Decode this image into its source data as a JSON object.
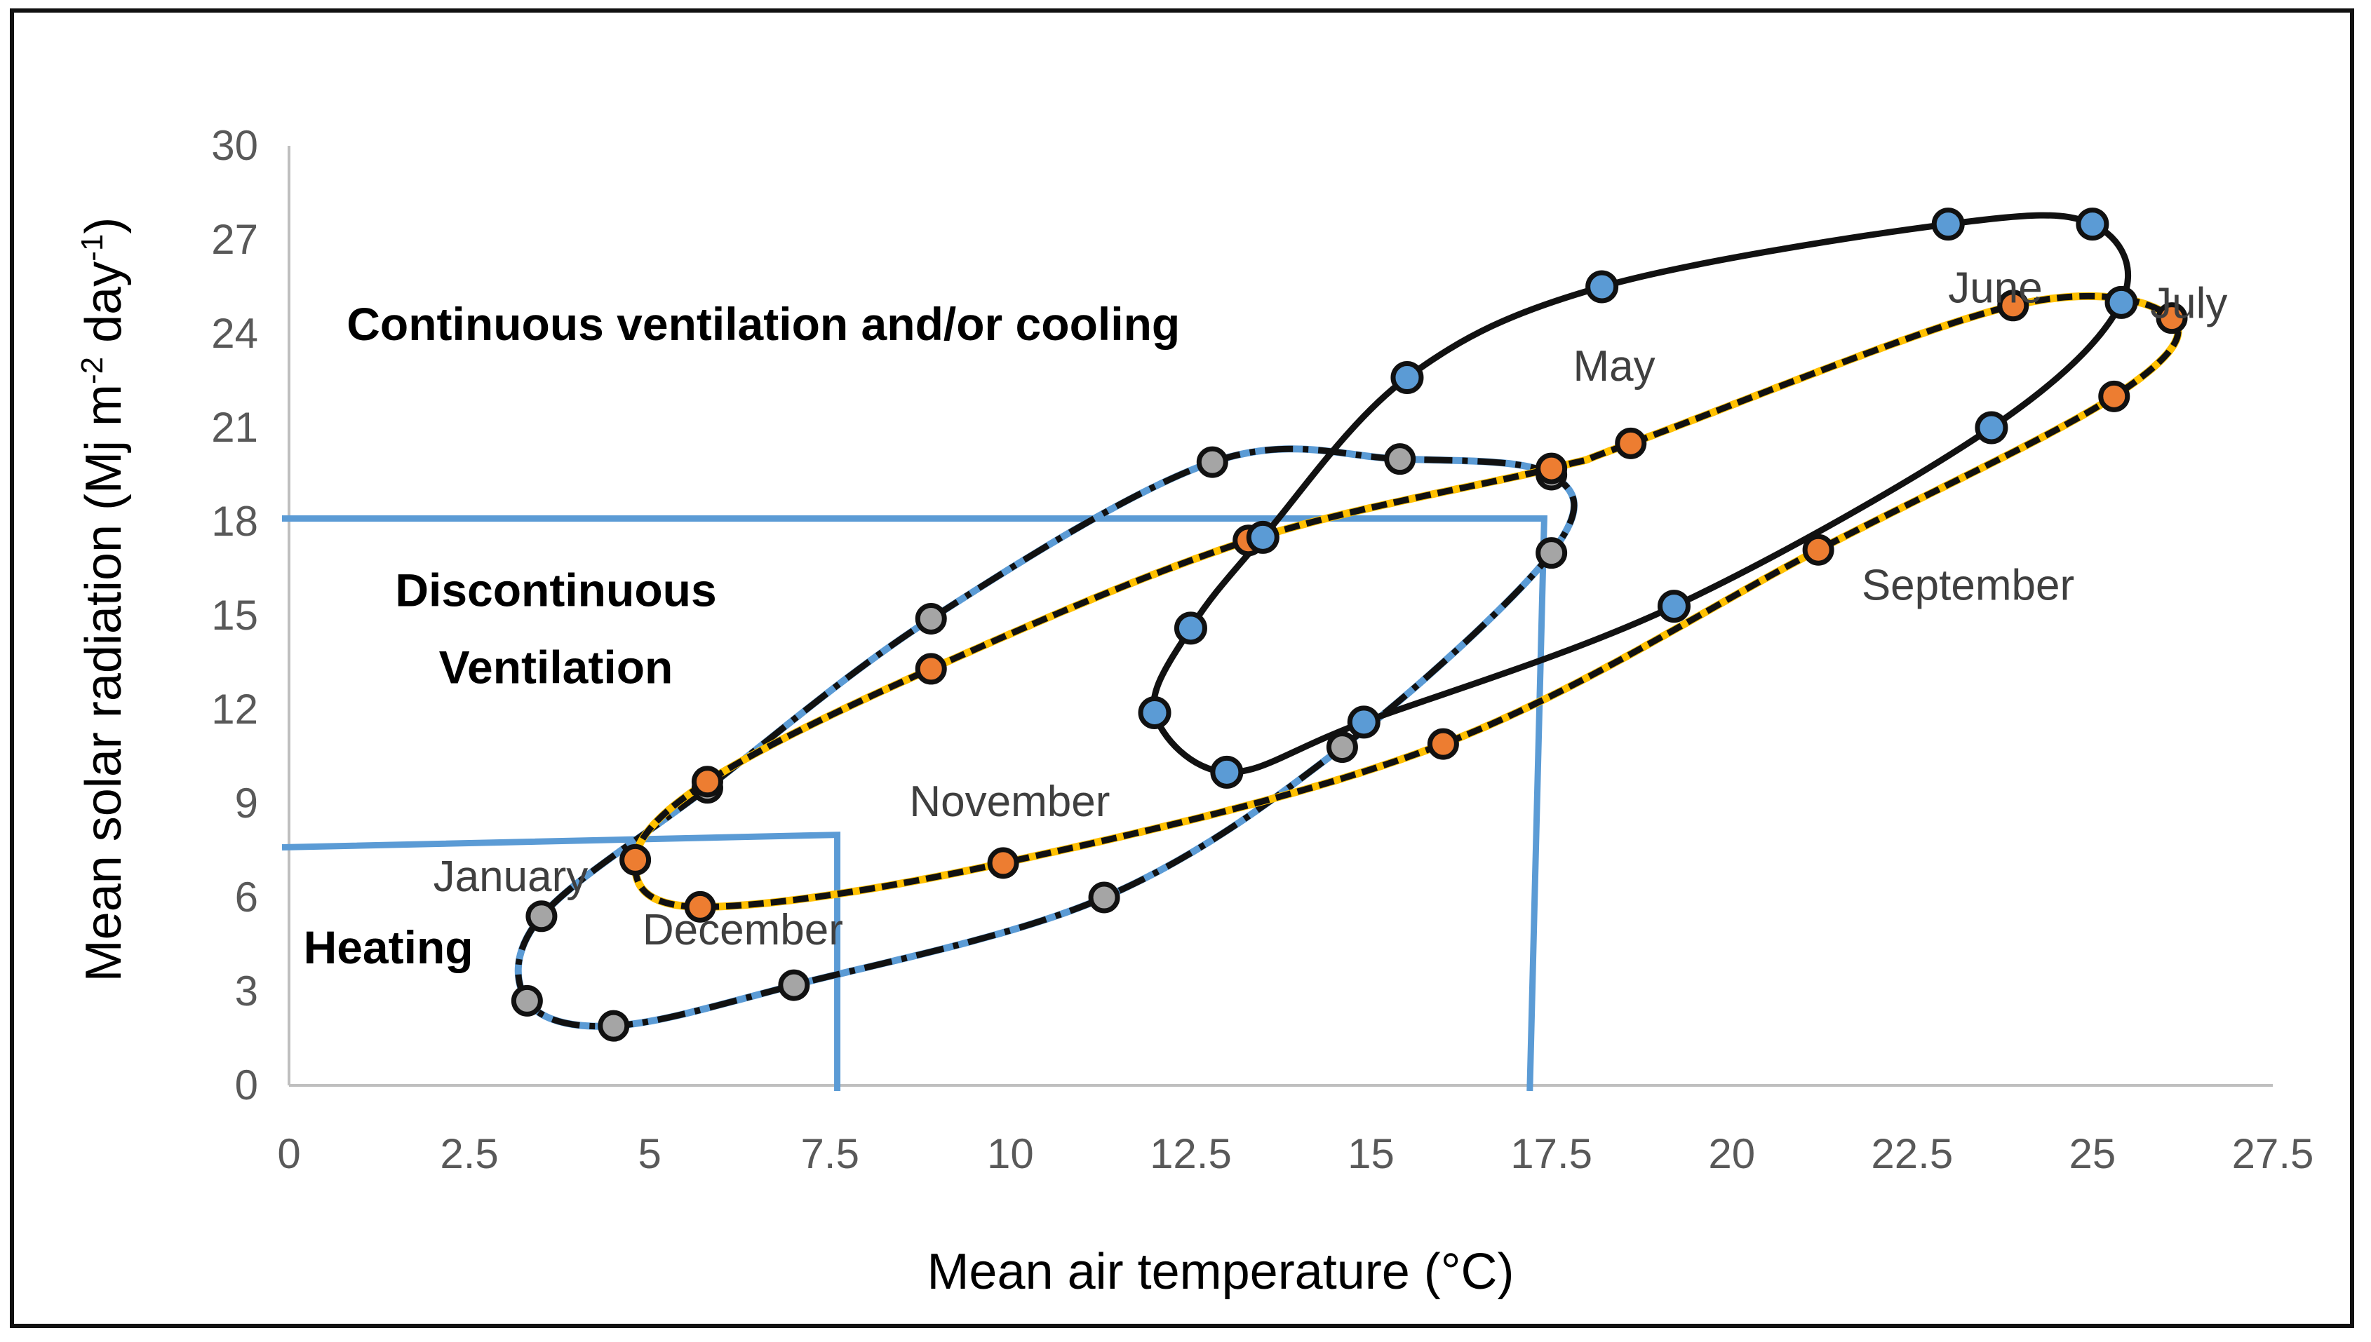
{
  "chart_data": {
    "type": "scatter",
    "title": "",
    "xlabel": "Mean air temperature (°C)",
    "ylabel": {
      "main": "Mean solar radiation (Mj m",
      "sup1": "-2",
      "mid": " day",
      "sup2": "-1",
      "end": ")"
    },
    "xlim": [
      0,
      27.5
    ],
    "ylim": [
      0,
      30
    ],
    "x_ticks": [
      "0",
      "2.5",
      "5",
      "7.5",
      "10",
      "12.5",
      "15",
      "17.5",
      "20",
      "22.5",
      "25",
      "27.5"
    ],
    "y_ticks": [
      "0",
      "3",
      "6",
      "9",
      "12",
      "15",
      "18",
      "21",
      "24",
      "27",
      "30"
    ],
    "grid": false,
    "zones": [
      {
        "name": "Heating",
        "label": "Heating",
        "label_pos": [
          0.2,
          3.9
        ],
        "rect": {
          "x_max": 7.6,
          "y_left": 7.6,
          "y_right": 8.0
        }
      },
      {
        "name": "Discontinuous Ventilation",
        "label_lines": [
          "Discontinuous",
          "Ventilation"
        ],
        "label_pos": [
          3.7,
          15.3
        ],
        "rect": {
          "x_left_bottom": 17.2,
          "x_right_top": 17.4,
          "y": 18.1
        }
      },
      {
        "name": "Continuous ventilation",
        "label": "Continuous ventilation and/or cooling",
        "label_pos": [
          0.8,
          23.8
        ]
      }
    ],
    "series": [
      {
        "name": "series-black-blue",
        "line_color": "#111111",
        "marker_color": "#5b9bd5",
        "dash": "solid",
        "closed": true,
        "points": [
          [
            13.0,
            10.0
          ],
          [
            12.0,
            11.9
          ],
          [
            12.5,
            14.6
          ],
          [
            13.5,
            17.5
          ],
          [
            15.5,
            22.6
          ],
          [
            18.2,
            25.5
          ],
          [
            23.0,
            27.5
          ],
          [
            25.0,
            27.5
          ],
          [
            25.4,
            25.0
          ],
          [
            23.6,
            21.0
          ],
          [
            19.2,
            15.3
          ],
          [
            14.9,
            11.6
          ]
        ]
      },
      {
        "name": "series-orange-yellow",
        "line_color": "#111111",
        "line_color2": "#ffc000",
        "marker_color": "#ed7d31",
        "dash": "dashed",
        "closed": true,
        "points": [
          [
            4.8,
            7.2
          ],
          [
            5.8,
            9.7
          ],
          [
            8.9,
            13.3
          ],
          [
            13.3,
            17.4
          ],
          [
            17.5,
            19.7
          ],
          [
            18.6,
            20.5
          ],
          [
            23.9,
            24.9
          ],
          [
            26.1,
            24.5
          ],
          [
            25.3,
            22.0
          ],
          [
            21.2,
            17.1
          ],
          [
            16.0,
            10.9
          ],
          [
            9.9,
            7.1
          ],
          [
            5.7,
            5.7
          ]
        ]
      },
      {
        "name": "series-grey-blue",
        "line_color": "#5b9bd5",
        "line_color2": "#111111",
        "marker_color": "#a5a5a5",
        "dash": "dashdot",
        "closed": true,
        "points": [
          [
            3.3,
            2.7
          ],
          [
            3.5,
            5.4
          ],
          [
            5.8,
            9.5
          ],
          [
            8.9,
            14.9
          ],
          [
            12.8,
            19.9
          ],
          [
            15.4,
            20.0
          ],
          [
            17.5,
            19.5
          ],
          [
            17.5,
            17.0
          ],
          [
            14.6,
            10.8
          ],
          [
            11.3,
            6.0
          ],
          [
            7.0,
            3.2
          ],
          [
            4.5,
            1.9
          ]
        ]
      }
    ],
    "annotations": [
      {
        "text": "January",
        "pos": [
          2.0,
          6.2
        ]
      },
      {
        "text": "December",
        "pos": [
          4.9,
          4.5
        ]
      },
      {
        "text": "November",
        "pos": [
          8.6,
          8.6
        ]
      },
      {
        "text": "May",
        "pos": [
          17.8,
          22.5
        ]
      },
      {
        "text": "June",
        "pos": [
          23.0,
          25.0
        ]
      },
      {
        "text": "July",
        "pos": [
          25.8,
          24.5
        ]
      },
      {
        "text": "September",
        "pos": [
          21.8,
          15.5
        ]
      }
    ],
    "colors": {
      "zone_line": "#5b9bd5",
      "axis": "#bfbfbf"
    }
  }
}
